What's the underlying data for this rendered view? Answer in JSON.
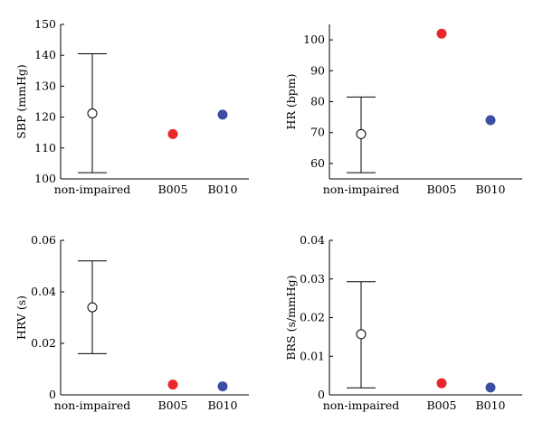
{
  "chart_data": [
    {
      "type": "scatter",
      "ylabel": "SBP (mmHg)",
      "ylim": [
        100,
        150
      ],
      "yticks": [
        "100",
        "110",
        "120",
        "130",
        "140",
        "150"
      ],
      "categories": [
        "non-impaired",
        "B005",
        "B010"
      ],
      "points": [
        {
          "category": "non-impaired",
          "value": 121.2,
          "error_low": 102,
          "error_high": 140.5,
          "marker": "open-circle",
          "color": "#000000"
        },
        {
          "category": "B005",
          "value": 114.5,
          "marker": "filled-circle",
          "color": "#e8262b"
        },
        {
          "category": "B010",
          "value": 120.8,
          "marker": "filled-circle",
          "color": "#3b4ea2"
        }
      ]
    },
    {
      "type": "scatter",
      "ylabel": "HR (bpm)",
      "ylim": [
        55,
        105
      ],
      "yticks": [
        "60",
        "70",
        "80",
        "90",
        "100"
      ],
      "categories": [
        "non-impaired",
        "B005",
        "B010"
      ],
      "points": [
        {
          "category": "non-impaired",
          "value": 69.5,
          "error_low": 57,
          "error_high": 81.5,
          "marker": "open-circle",
          "color": "#000000"
        },
        {
          "category": "B005",
          "value": 102,
          "marker": "filled-circle",
          "color": "#e8262b"
        },
        {
          "category": "B010",
          "value": 74,
          "marker": "filled-circle",
          "color": "#3b4ea2"
        }
      ]
    },
    {
      "type": "scatter",
      "ylabel": "HRV (s)",
      "ylim": [
        0,
        0.06
      ],
      "yticks": [
        "0",
        "0.02",
        "0.04",
        "0.06"
      ],
      "categories": [
        "non-impaired",
        "B005",
        "B010"
      ],
      "points": [
        {
          "category": "non-impaired",
          "value": 0.034,
          "error_low": 0.016,
          "error_high": 0.052,
          "marker": "open-circle",
          "color": "#000000"
        },
        {
          "category": "B005",
          "value": 0.004,
          "marker": "filled-circle",
          "color": "#e8262b"
        },
        {
          "category": "B010",
          "value": 0.0033,
          "marker": "filled-circle",
          "color": "#3b4ea2"
        }
      ]
    },
    {
      "type": "scatter",
      "ylabel": "BRS (s/mmHg)",
      "ylim": [
        0,
        0.04
      ],
      "yticks": [
        "0",
        "0.01",
        "0.02",
        "0.03",
        "0.04"
      ],
      "categories": [
        "non-impaired",
        "B005",
        "B010"
      ],
      "points": [
        {
          "category": "non-impaired",
          "value": 0.0157,
          "error_low": 0.0018,
          "error_high": 0.0293,
          "marker": "open-circle",
          "color": "#000000"
        },
        {
          "category": "B005",
          "value": 0.003,
          "marker": "filled-circle",
          "color": "#e8262b"
        },
        {
          "category": "B010",
          "value": 0.0019,
          "marker": "filled-circle",
          "color": "#3b4ea2"
        }
      ]
    }
  ]
}
